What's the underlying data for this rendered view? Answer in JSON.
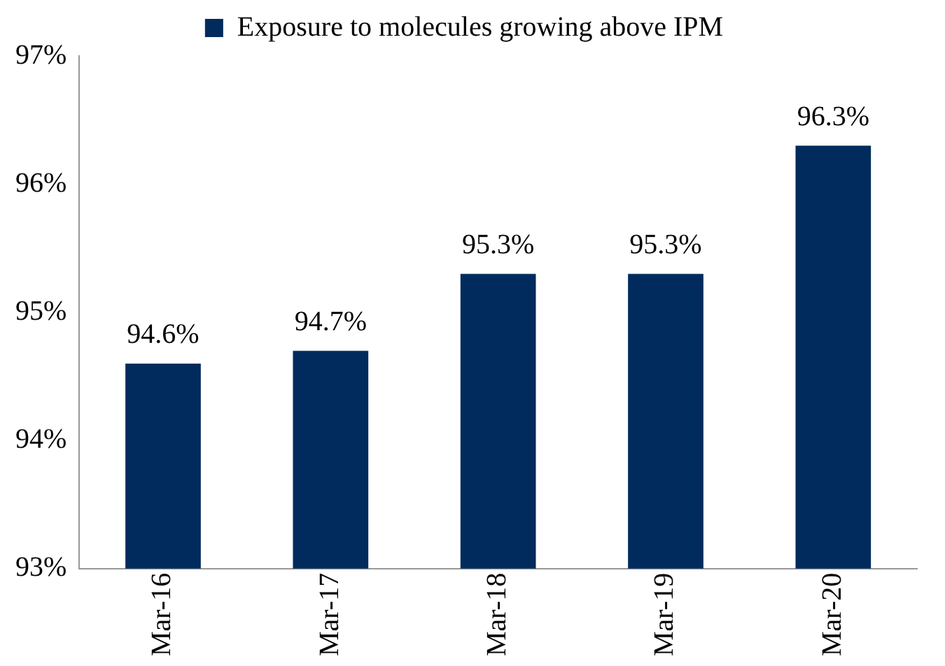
{
  "chart_data": {
    "type": "bar",
    "categories": [
      "Mar-16",
      "Mar-17",
      "Mar-18",
      "Mar-19",
      "Mar-20"
    ],
    "series": [
      {
        "name": "Exposure to molecules growing above IPM",
        "color": "#002b5c",
        "values": [
          94.6,
          94.7,
          95.3,
          95.3,
          96.3
        ]
      }
    ],
    "value_labels": [
      "94.6%",
      "94.7%",
      "95.3%",
      "95.3%",
      "96.3%"
    ],
    "ylim": [
      93,
      97
    ],
    "yticks": [
      {
        "value": 93,
        "label": "93%"
      },
      {
        "value": 94,
        "label": "94%"
      },
      {
        "value": 95,
        "label": "95%"
      },
      {
        "value": 96,
        "label": "96%"
      },
      {
        "value": 97,
        "label": "97%"
      }
    ],
    "grid": false,
    "legend": "top"
  }
}
